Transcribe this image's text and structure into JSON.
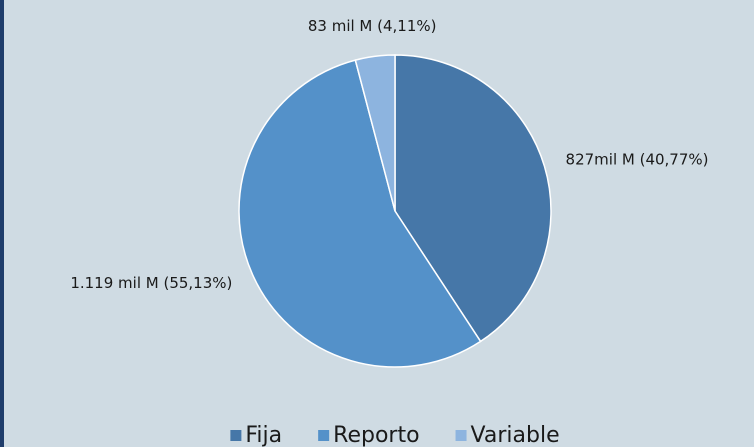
{
  "chart_data": {
    "type": "pie",
    "categories": [
      "Fija",
      "Reporto",
      "Variable"
    ],
    "values": [
      827,
      1119,
      83
    ],
    "value_labels": [
      "827mil M (40,77%)",
      "1.119 mil M (55,13%)",
      "83 mil M (4,11%)"
    ],
    "colors": [
      "#4677a8",
      "#5491c9",
      "#8db4df"
    ],
    "legend": "bottom"
  }
}
